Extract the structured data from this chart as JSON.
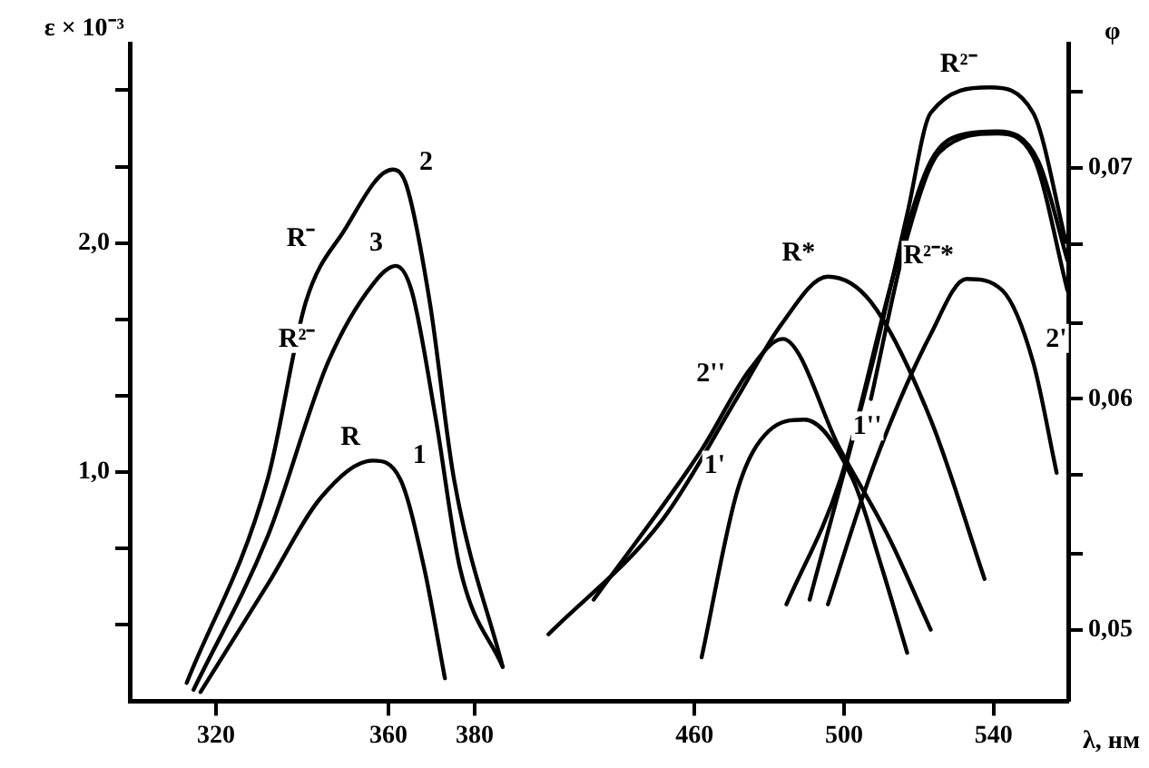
{
  "chart_data": [
    {
      "type": "line",
      "ylabel": "ε × 10⁻³",
      "xlim": [
        300,
        392
      ],
      "xticks": [
        320,
        360,
        380
      ],
      "ylim": [
        0,
        2.87
      ],
      "yticks": [
        {
          "value": 0.333,
          "label": null
        },
        {
          "value": 0.667,
          "label": null
        },
        {
          "value": 1,
          "label": "1,0"
        },
        {
          "value": 1.333,
          "label": null
        },
        {
          "value": 1.667,
          "label": null
        },
        {
          "value": 2,
          "label": "2,0"
        },
        {
          "value": 2.333,
          "label": null
        },
        {
          "value": 2.667,
          "label": null
        }
      ],
      "series": [
        {
          "color": "#000000",
          "x": [
            313.2,
            332,
            340.8,
            349.6,
            361,
            364.2,
            369.6,
            375.2,
            386.5
          ],
          "values": [
            0.08,
            0.97,
            1.74,
            2.05,
            2.32,
            2.25,
            1.74,
            0.97,
            0.15
          ]
        },
        {
          "color": "#000000",
          "x": [
            314.8,
            332,
            346,
            356.4,
            361.7,
            365.4,
            371,
            376.6,
            386.5
          ],
          "values": [
            0.05,
            0.72,
            1.48,
            1.82,
            1.9,
            1.79,
            1.23,
            0.58,
            0.15
          ]
        },
        {
          "color": "#000000",
          "x": [
            316.4,
            332,
            344.4,
            356.4,
            362.7,
            368.3,
            373.1
          ],
          "values": [
            0.04,
            0.51,
            0.89,
            1.05,
            0.97,
            0.58,
            0.1
          ]
        }
      ],
      "annotations": [
        {
          "text": "R⁻",
          "x": 346,
          "y": 1.92
        },
        {
          "text": "2",
          "x": 364.2,
          "y": 2.25
        },
        {
          "text": "3",
          "x": 361.7,
          "y": 1.9
        },
        {
          "text": "R²⁻",
          "x": 346,
          "y": 1.48
        },
        {
          "text": "R",
          "x": 356.4,
          "y": 1.05
        },
        {
          "text": "1",
          "x": 362.7,
          "y": 0.97
        }
      ]
    },
    {
      "type": "line",
      "xlabel": "λ, нм",
      "ylabel": "φ",
      "xlim": [
        415,
        560
      ],
      "xticks": [
        460,
        500,
        540
      ],
      "ylim": [
        0.0469,
        0.0754
      ],
      "yticks": [
        {
          "value": 0.05,
          "label": "0,05"
        },
        {
          "value": 0.0533,
          "label": null
        },
        {
          "value": 0.0567,
          "label": null
        },
        {
          "value": 0.06,
          "label": "0,06"
        },
        {
          "value": 0.0633,
          "label": null
        },
        {
          "value": 0.0667,
          "label": null
        },
        {
          "value": 0.07,
          "label": "0,07"
        },
        {
          "value": 0.0733,
          "label": null
        }
      ],
      "series": [
        {
          "color": "#000000",
          "x": [
            420.9,
            451.6,
            471.6,
            483.1,
            495.7,
            507.2,
            523.2,
            537.6
          ],
          "values": [
            0.0498,
            0.0548,
            0.0601,
            0.0632,
            0.0653,
            0.0642,
            0.0591,
            0.0522
          ]
        },
        {
          "color": "#000000",
          "x": [
            433,
            461.9,
            474.9,
            483.6,
            499,
            512,
            523.2
          ],
          "values": [
            0.0513,
            0.0578,
            0.0613,
            0.0626,
            0.0578,
            0.054,
            0.05
          ]
        },
        {
          "color": "#000000",
          "x": [
            461.9,
            471.6,
            479.8,
            489.4,
            502.4,
            510.1,
            516.9
          ],
          "values": [
            0.0488,
            0.0561,
            0.0586,
            0.0591,
            0.0565,
            0.0527,
            0.049
          ]
        },
        {
          "color": "#000000",
          "x": [
            484.6,
            499,
            513.5,
            523.2,
            532.8,
            541,
            552,
            559.8
          ],
          "values": [
            0.0511,
            0.0565,
            0.0655,
            0.0703,
            0.0715,
            0.0716,
            0.0703,
            0.066
          ]
        },
        {
          "color": "#000000",
          "x": [
            507.2,
            516.9,
            525.6,
            541,
            550.6,
            559.8
          ],
          "values": [
            0.06,
            0.067,
            0.0707,
            0.0715,
            0.0705,
            0.0647
          ]
        },
        {
          "color": "#000000",
          "x": [
            490.8,
            507.7,
            516.9,
            523.2,
            539,
            550.6,
            559.4
          ],
          "values": [
            0.0513,
            0.0616,
            0.068,
            0.0724,
            0.0735,
            0.0724,
            0.0668
          ]
        },
        {
          "color": "#000000",
          "x": [
            495.7,
            507.7,
            523.2,
            532.8,
            542.4,
            550.6,
            556.9
          ],
          "values": [
            0.0511,
            0.057,
            0.0628,
            0.0652,
            0.0647,
            0.0616,
            0.0568
          ]
        }
      ],
      "annotations": [
        {
          "text": "2''",
          "x": 471.6,
          "y": 0.0601
        },
        {
          "text": "R*",
          "x": 495.7,
          "y": 0.0653
        },
        {
          "text": "1''",
          "x": 499,
          "y": 0.0578
        },
        {
          "text": "1'",
          "x": 471.6,
          "y": 0.0561
        },
        {
          "text": "R²⁻",
          "x": 539,
          "y": 0.0735
        },
        {
          "text": "R²⁻*",
          "x": 532.8,
          "y": 0.0652
        },
        {
          "text": "2'",
          "x": 550.6,
          "y": 0.0616
        }
      ]
    }
  ]
}
